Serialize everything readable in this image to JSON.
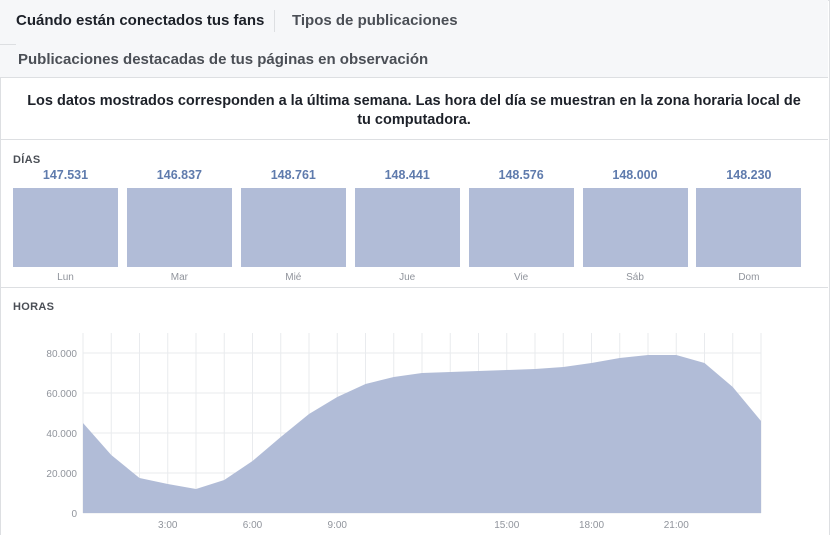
{
  "tabs": [
    {
      "label": "Cuándo están conectados tus fans"
    },
    {
      "label": "Tipos de publicaciones"
    },
    {
      "label": "Publicaciones destacadas de tus páginas en observación"
    }
  ],
  "notice": "Los datos mostrados corresponden a la última semana. Las hora del día se muestran en la zona horaria local de tu computadora.",
  "days_section": {
    "label": "DÍAS"
  },
  "hours_section": {
    "label": "HORAS"
  },
  "colors": {
    "bar": "#b1bcd7",
    "value": "#5f7bad",
    "area": "#b1bcd7",
    "grid": "#e9ebee"
  },
  "chart_data": [
    {
      "type": "bar",
      "title": "DÍAS",
      "categories": [
        "Lun",
        "Mar",
        "Mié",
        "Jue",
        "Vie",
        "Sáb",
        "Dom"
      ],
      "value_labels": [
        "147.531",
        "146.837",
        "148.761",
        "148.441",
        "148.576",
        "148.000",
        "148.230"
      ],
      "values": [
        147531,
        146837,
        148761,
        148441,
        148576,
        148000,
        148230
      ]
    },
    {
      "type": "area",
      "title": "HORAS",
      "x": [
        0,
        1,
        2,
        3,
        4,
        5,
        6,
        7,
        8,
        9,
        10,
        11,
        12,
        13,
        14,
        15,
        16,
        17,
        18,
        19,
        20,
        21,
        22,
        23,
        24
      ],
      "x_tick_labels": [
        {
          "x": 3,
          "label": "3:00"
        },
        {
          "x": 6,
          "label": "6:00"
        },
        {
          "x": 9,
          "label": "9:00"
        },
        {
          "x": 15,
          "label": "15:00"
        },
        {
          "x": 18,
          "label": "18:00"
        },
        {
          "x": 21,
          "label": "21:00"
        }
      ],
      "y_ticks": [
        0,
        20000,
        40000,
        60000,
        80000
      ],
      "y_tick_labels": [
        "0",
        "20.000",
        "40.000",
        "60.000",
        "80.000"
      ],
      "ylim": [
        0,
        80000
      ],
      "grid": true,
      "values": [
        45000,
        29000,
        17500,
        14500,
        12000,
        16500,
        26000,
        38000,
        49500,
        58000,
        64500,
        68000,
        70000,
        70500,
        71000,
        71500,
        72000,
        73000,
        75000,
        77500,
        79000,
        79000,
        75000,
        63000,
        46000
      ]
    }
  ]
}
